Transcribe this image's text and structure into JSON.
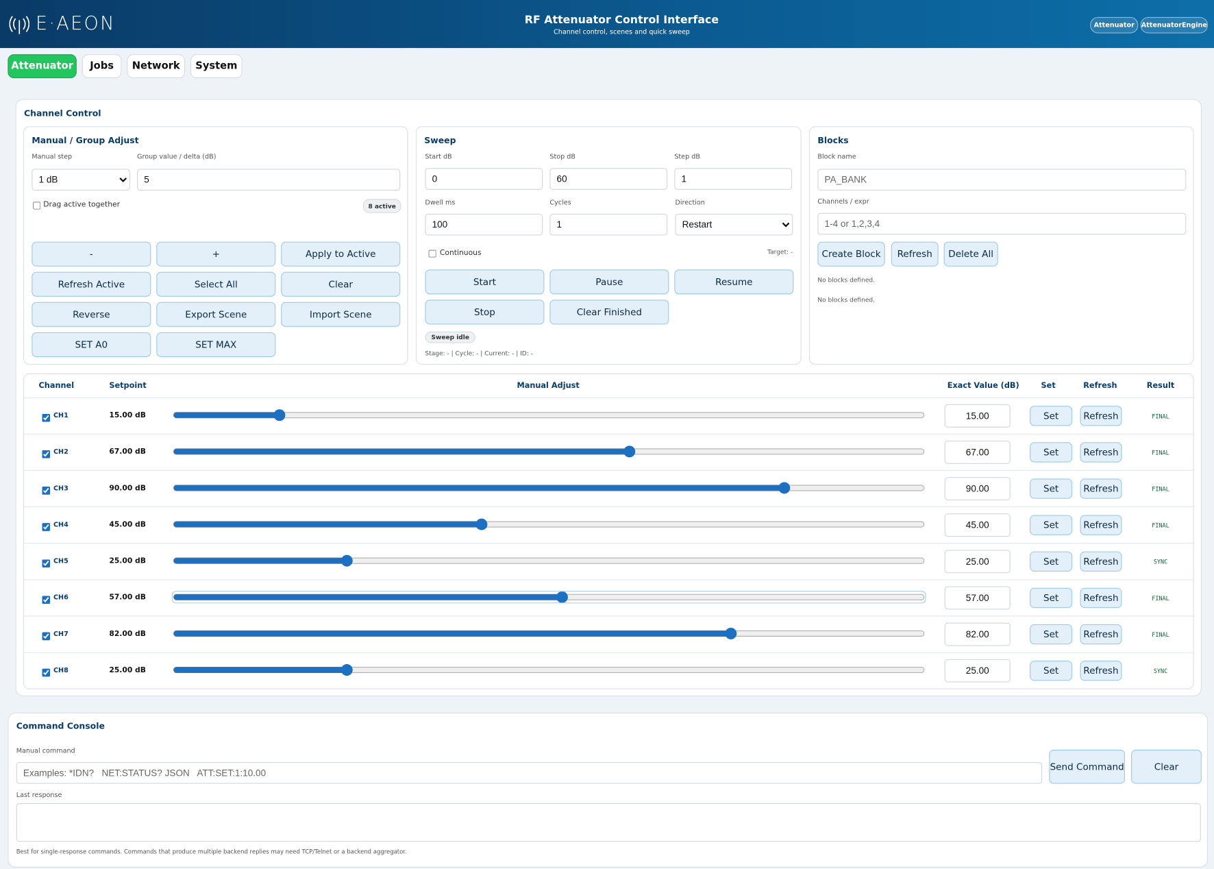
{
  "header": {
    "logo": "E·AEON",
    "title": "RF Attenuator Control Interface",
    "subtitle": "Channel control, scenes and quick sweep",
    "badges": [
      "Attenuator",
      "AttenuatorEngine"
    ]
  },
  "tabs": [
    "Attenuator",
    "Jobs",
    "Network",
    "System"
  ],
  "channel_control": {
    "title": "Channel Control",
    "manual": {
      "title": "Manual / Group Adjust",
      "step_label": "Manual step",
      "step_value": "1 dB",
      "group_label": "Group value / delta (dB)",
      "group_value": "5",
      "drag_label": "Drag active together",
      "active_badge": "8 active",
      "buttons": [
        "-",
        "+",
        "Apply to Active",
        "Refresh Active",
        "Select All",
        "Clear",
        "Reverse",
        "Export Scene",
        "Import Scene",
        "SET A0",
        "SET MAX"
      ]
    },
    "sweep": {
      "title": "Sweep",
      "fields": [
        {
          "label": "Start dB",
          "value": "0"
        },
        {
          "label": "Stop dB",
          "value": "60"
        },
        {
          "label": "Step dB",
          "value": "1"
        },
        {
          "label": "Dwell ms",
          "value": "100"
        },
        {
          "label": "Cycles",
          "value": "1"
        }
      ],
      "direction_label": "Direction",
      "direction_value": "Restart",
      "continuous_label": "Continuous",
      "target": "Target: -",
      "buttons": [
        "Start",
        "Pause",
        "Resume",
        "Stop",
        "Clear Finished"
      ],
      "status": "Sweep idle",
      "stage": "Stage: - | Cycle: - | Current: - | ID: -"
    },
    "blocks": {
      "title": "Blocks",
      "name_label": "Block name",
      "name_placeholder": "PA_BANK",
      "channels_label": "Channels / expr",
      "channels_placeholder": "1-4 or 1,2,3,4",
      "buttons": [
        "Create Block",
        "Refresh",
        "Delete All"
      ],
      "messages": [
        "No blocks defined.",
        "No blocks defined."
      ]
    }
  },
  "table": {
    "headers": [
      "Channel",
      "Setpoint",
      "Manual Adjust",
      "Exact Value (dB)",
      "Set",
      "Refresh",
      "Result"
    ],
    "rows": [
      {
        "channel": "CH1",
        "setpoint": "15.00 dB",
        "value": 15,
        "exact": "15.00",
        "set": "Set",
        "refresh": "Refresh",
        "result": "FINAL"
      },
      {
        "channel": "CH2",
        "setpoint": "67.00 dB",
        "value": 67,
        "exact": "67.00",
        "set": "Set",
        "refresh": "Refresh",
        "result": "FINAL"
      },
      {
        "channel": "CH3",
        "setpoint": "90.00 dB",
        "value": 90,
        "exact": "90.00",
        "set": "Set",
        "refresh": "Refresh",
        "result": "FINAL"
      },
      {
        "channel": "CH4",
        "setpoint": "45.00 dB",
        "value": 45,
        "exact": "45.00",
        "set": "Set",
        "refresh": "Refresh",
        "result": "FINAL"
      },
      {
        "channel": "CH5",
        "setpoint": "25.00 dB",
        "value": 25,
        "exact": "25.00",
        "set": "Set",
        "refresh": "Refresh",
        "result": "SYNC"
      },
      {
        "channel": "CH6",
        "setpoint": "57.00 dB",
        "value": 57,
        "exact": "57.00",
        "set": "Set",
        "refresh": "Refresh",
        "result": "FINAL"
      },
      {
        "channel": "CH7",
        "setpoint": "82.00 dB",
        "value": 82,
        "exact": "82.00",
        "set": "Set",
        "refresh": "Refresh",
        "result": "FINAL"
      },
      {
        "channel": "CH8",
        "setpoint": "25.00 dB",
        "value": 25,
        "exact": "25.00",
        "set": "Set",
        "refresh": "Refresh",
        "result": "SYNC"
      }
    ]
  },
  "console": {
    "title": "Command Console",
    "command_label": "Manual command",
    "placeholder": "Examples: *IDN?   NET:STATUS? JSON   ATT:SET:1:10.00",
    "send": "Send Command",
    "clear": "Clear",
    "response_label": "Last response",
    "note": "Best for single-response commands. Commands that produce multiple backend replies may need TCP/Telnet or a backend aggregator."
  }
}
